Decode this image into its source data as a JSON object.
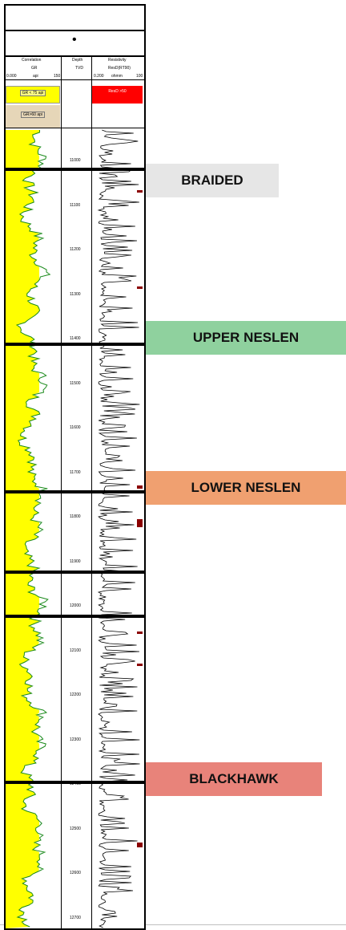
{
  "header": {
    "dot": "•",
    "track_titles": [
      "Correlation",
      "Depth",
      "Resistivity"
    ],
    "curve_names": [
      "GR",
      "TVD",
      "ResD(RT90)"
    ],
    "gr_scale": {
      "min": "0.000",
      "unit": "api",
      "max": "150"
    },
    "res_scale": {
      "min": "0.200",
      "unit": "ohmm",
      "max": "100"
    },
    "gr_fill_1": "GR < 75 api",
    "gr_fill_2": "GR>60 api",
    "res_fill": "ResD >50"
  },
  "colors": {
    "gr_curve": "#1a8a1a",
    "gr_sand_fill": "#ffff00",
    "gr_shale_fill": "#e6d6b8",
    "res_fill": "#ff0000",
    "res_high": "#8b0000",
    "braided": "#e6e6e6",
    "upper_neslen": "#8fd19e",
    "lower_neslen": "#f0a070",
    "blackhawk": "#e8837a"
  },
  "depth_ticks": [
    "11000",
    "11100",
    "11200",
    "11300",
    "11400",
    "11500",
    "11600",
    "11700",
    "11800",
    "11900",
    "12000",
    "12100",
    "12200",
    "12300",
    "12400",
    "12500",
    "12600",
    "12700"
  ],
  "zones": [
    {
      "name": "BRAIDED",
      "color_key": "braided",
      "top_md": 11020
    },
    {
      "name": "UPPER NESLEN",
      "color_key": "upper_neslen",
      "top_md": 11413
    },
    {
      "name": "LOWER NESLEN",
      "color_key": "lower_neslen",
      "top_md": 11744
    },
    {
      "name": "BLACKHAWK",
      "color_key": "blackhawk",
      "top_md": 12397
    }
  ],
  "markers_md": [
    11020,
    11413,
    11744,
    11925,
    12024,
    12397
  ]
}
